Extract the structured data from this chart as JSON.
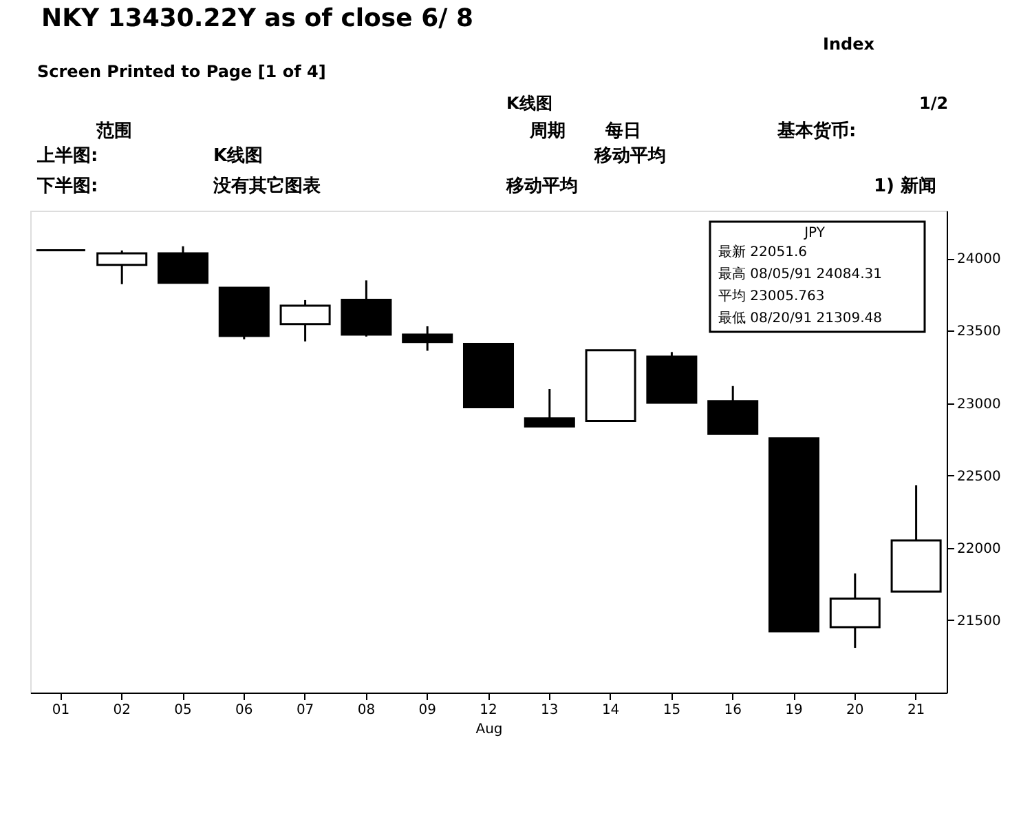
{
  "chart_data": {
    "type": "candlestick",
    "title": "NKY 13430.22Y as of close 6/ 8",
    "subtitle": "Screen Printed to Page [1 of 4]",
    "xlabel": "Aug",
    "categories": [
      "01",
      "02",
      "05",
      "06",
      "07",
      "08",
      "09",
      "12",
      "13",
      "14",
      "15",
      "16",
      "19",
      "20",
      "21"
    ],
    "ohlc": [
      [
        24057,
        24057,
        24057,
        24057
      ],
      [
        23955,
        24055,
        23822,
        24035
      ],
      [
        24035,
        24084,
        23832,
        23832
      ],
      [
        23797,
        23797,
        23441,
        23464
      ],
      [
        23546,
        23712,
        23426,
        23673
      ],
      [
        23714,
        23848,
        23460,
        23474
      ],
      [
        23474,
        23531,
        23362,
        23422
      ],
      [
        23410,
        23410,
        22972,
        22972
      ],
      [
        22895,
        23098,
        22839,
        22839
      ],
      [
        22877,
        23365,
        22877,
        23365
      ],
      [
        23321,
        23353,
        23003,
        23003
      ],
      [
        23013,
        23118,
        22788,
        22788
      ],
      [
        22756,
        22756,
        21423,
        21423
      ],
      [
        21452,
        21823,
        21309,
        21649
      ],
      [
        21698,
        22432,
        21698,
        22051.6
      ]
    ],
    "color": "#000000",
    "ylim": [
      21000,
      24330
    ],
    "yticks": [
      21500,
      22000,
      22500,
      23000,
      23500,
      24000
    ],
    "grid": false,
    "annotations": [
      "Index",
      "K线图",
      "1/2",
      "范围",
      "周期",
      "每日",
      "基本货币:",
      "上半图:",
      "K线图",
      "移动平均",
      "下半图:",
      "没有其它图表",
      "移动平均",
      "1) 新闻",
      "JPY",
      "最新 22051.6",
      "最高 08/05/91 24084.31",
      "平均 23005.763",
      "最低 08/20/91 21309.48"
    ]
  }
}
